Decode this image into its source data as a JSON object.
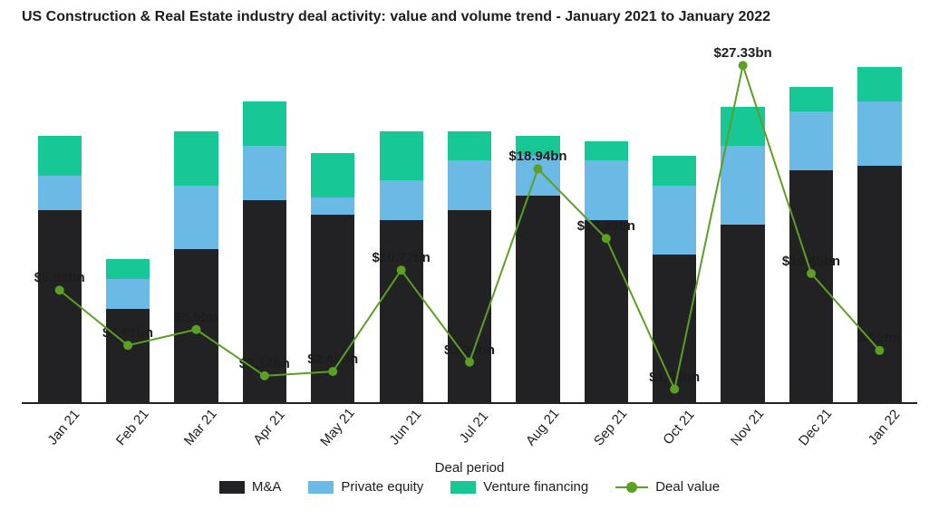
{
  "title": "US Construction & Real Estate industry deal activity: value and volume trend - January 2021 to January 2022",
  "x_axis_title": "Deal period",
  "legend": {
    "ma": "M&A",
    "pe": "Private equity",
    "vc": "Venture financing",
    "dv": "Deal value"
  },
  "chart": {
    "type": "stacked-bar + line",
    "colors": {
      "ma": "#222124",
      "pe": "#6abae5",
      "vc": "#17c796",
      "line": "#5b9f23",
      "axis": "#222222",
      "text": "#1d1d1d",
      "bg": "#ffffff"
    },
    "bar_max_volume": 150,
    "line_max_value": 30,
    "bar_width_pct": 64,
    "line_stroke_width": 2,
    "line_marker_radius": 5,
    "title_fontsize": 16,
    "label_fontsize": 15,
    "value_label_fontsize": 15,
    "periods": [
      {
        "label": "Jan 21",
        "ma": 78,
        "pe": 14,
        "vc": 16,
        "deal_value": 9.09,
        "value_label": "$9.09bn"
      },
      {
        "label": "Feb 21",
        "ma": 38,
        "pe": 12,
        "vc": 8,
        "deal_value": 4.61,
        "value_label": "$4.61bn"
      },
      {
        "label": "Mar 21",
        "ma": 62,
        "pe": 26,
        "vc": 22,
        "deal_value": 5.9,
        "value_label": "$5.9bn"
      },
      {
        "label": "Apr 21",
        "ma": 82,
        "pe": 22,
        "vc": 18,
        "deal_value": 2.14,
        "value_label": "$2.14bn"
      },
      {
        "label": "May 21",
        "ma": 76,
        "pe": 7,
        "vc": 18,
        "deal_value": 2.49,
        "value_label": "$2.49bn"
      },
      {
        "label": "Jun 21",
        "ma": 74,
        "pe": 16,
        "vc": 20,
        "deal_value": 10.72,
        "value_label": "$10.72bn"
      },
      {
        "label": "Jul 21",
        "ma": 78,
        "pe": 20,
        "vc": 12,
        "deal_value": 3.26,
        "value_label": "$3.26bn"
      },
      {
        "label": "Aug 21",
        "ma": 84,
        "pe": 16,
        "vc": 8,
        "deal_value": 18.94,
        "value_label": "$18.94bn"
      },
      {
        "label": "Sep 21",
        "ma": 74,
        "pe": 24,
        "vc": 8,
        "deal_value": 13.29,
        "value_label": "$13.29bn"
      },
      {
        "label": "Oct 21",
        "ma": 60,
        "pe": 28,
        "vc": 12,
        "deal_value": 1.06,
        "value_label": "$1.06bn"
      },
      {
        "label": "Nov 21",
        "ma": 72,
        "pe": 32,
        "vc": 16,
        "deal_value": 27.33,
        "value_label": "$27.33bn"
      },
      {
        "label": "Dec 21",
        "ma": 94,
        "pe": 24,
        "vc": 10,
        "deal_value": 10.45,
        "value_label": "$10.45bn"
      },
      {
        "label": "Jan 22",
        "ma": 96,
        "pe": 26,
        "vc": 14,
        "deal_value": 4.2,
        "value_label": "$4.2bn"
      }
    ]
  }
}
